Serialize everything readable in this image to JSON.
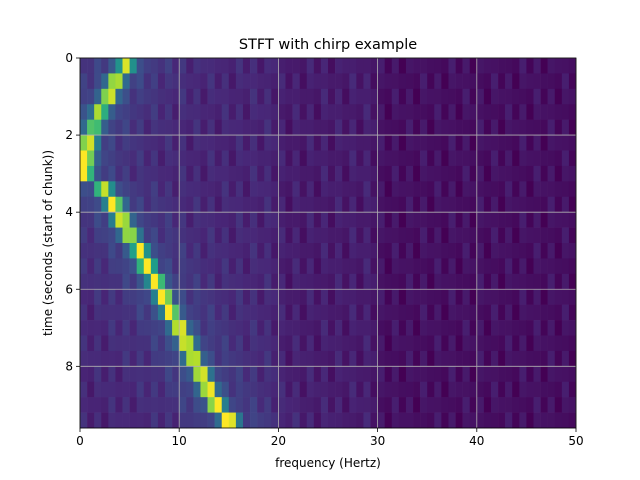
{
  "chart_data": {
    "type": "heatmap",
    "title": "STFT with chirp example",
    "xlabel": "frequency (Hertz)",
    "ylabel": "time (seconds (start of chunk))",
    "xlim": [
      0,
      50
    ],
    "ylim": [
      9.6,
      0
    ],
    "x_ticks": [
      "0",
      "10",
      "20",
      "30",
      "40",
      "50"
    ],
    "y_ticks": [
      "0",
      "2",
      "4",
      "6",
      "8"
    ],
    "x_tick_values": [
      0,
      10,
      20,
      30,
      40,
      50
    ],
    "y_tick_values": [
      0,
      2,
      4,
      6,
      8
    ],
    "grid": true,
    "colormap": "viridis",
    "x_bin_width_hz": 0.7143,
    "y_bin_height_s": 0.4,
    "ridge": [
      {
        "t": 0.0,
        "f": 4.6,
        "peak": 0.66
      },
      {
        "t": 0.4,
        "f": 3.6,
        "peak": 0.74
      },
      {
        "t": 0.8,
        "f": 2.9,
        "peak": 0.74
      },
      {
        "t": 1.2,
        "f": 2.0,
        "peak": 0.63
      },
      {
        "t": 1.6,
        "f": 1.4,
        "peak": 0.55
      },
      {
        "t": 2.0,
        "f": 0.8,
        "peak": 0.78
      },
      {
        "t": 2.4,
        "f": 0.5,
        "peak": 1.0
      },
      {
        "t": 2.8,
        "f": 0.4,
        "peak": 0.88
      },
      {
        "t": 3.2,
        "f": 2.4,
        "peak": 0.7
      },
      {
        "t": 3.6,
        "f": 3.4,
        "peak": 0.8
      },
      {
        "t": 4.0,
        "f": 4.2,
        "peak": 0.8
      },
      {
        "t": 4.4,
        "f": 5.0,
        "peak": 0.72
      },
      {
        "t": 4.8,
        "f": 6.0,
        "peak": 0.72
      },
      {
        "t": 5.2,
        "f": 6.7,
        "peak": 0.78
      },
      {
        "t": 5.6,
        "f": 7.6,
        "peak": 0.8
      },
      {
        "t": 6.0,
        "f": 8.4,
        "peak": 0.8
      },
      {
        "t": 6.4,
        "f": 9.1,
        "peak": 0.78
      },
      {
        "t": 6.8,
        "f": 10.0,
        "peak": 0.8
      },
      {
        "t": 7.2,
        "f": 10.7,
        "peak": 0.78
      },
      {
        "t": 7.6,
        "f": 11.4,
        "peak": 0.76
      },
      {
        "t": 8.0,
        "f": 12.2,
        "peak": 0.78
      },
      {
        "t": 8.4,
        "f": 12.9,
        "peak": 0.8
      },
      {
        "t": 8.8,
        "f": 13.7,
        "peak": 0.82
      },
      {
        "t": 9.2,
        "f": 15.0,
        "peak": 0.9
      }
    ],
    "colors": {
      "background_low": "#440154",
      "grid": "#b0b0b0",
      "frame": "#000000"
    }
  }
}
